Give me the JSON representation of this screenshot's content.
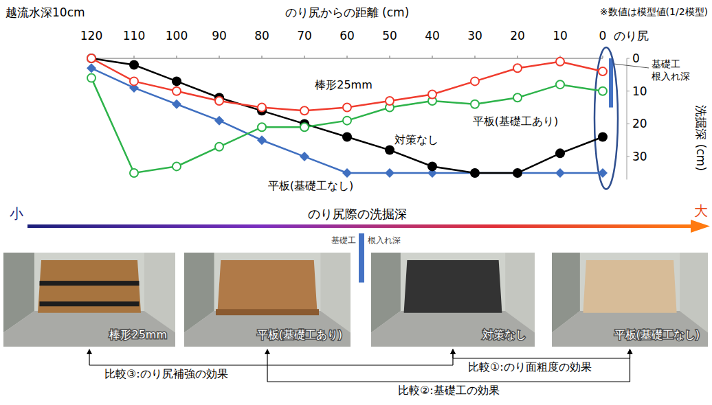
{
  "chart_data": {
    "type": "line",
    "title": "越流水深10cm",
    "note": "※数値は模型値(1/2模型)",
    "x_label": "のり尻からの距離 (cm)",
    "y_label": "洗掘深 (cm)",
    "x": [
      120,
      110,
      100,
      90,
      80,
      70,
      60,
      50,
      40,
      30,
      20,
      10,
      0
    ],
    "xlim": [
      120,
      0
    ],
    "xticks": [
      120,
      110,
      100,
      90,
      80,
      70,
      60,
      50,
      40,
      30,
      20,
      10,
      0
    ],
    "ylim": [
      0,
      37
    ],
    "yticks": [
      0,
      10,
      20,
      30
    ],
    "grid": false,
    "annotations": [
      {
        "text": "のり尻",
        "x": 0
      }
    ],
    "foundation": {
      "label": [
        "基礎工",
        "根入れ深"
      ],
      "x": 0,
      "depth": 15
    },
    "series": [
      {
        "name": "棒形25mm",
        "color": "#f03c2e",
        "marker": "circle-open",
        "values": [
          0,
          7,
          10,
          13,
          15,
          16,
          15,
          13,
          11,
          7,
          3,
          1,
          4
        ]
      },
      {
        "name": "平板(基礎工あり)",
        "color": "#2db34a",
        "marker": "circle-open",
        "values": [
          6,
          35,
          33,
          27,
          21,
          21,
          19,
          15,
          13,
          14,
          12,
          8,
          10
        ]
      },
      {
        "name": "対策なし",
        "color": "#000000",
        "marker": "circle",
        "values": [
          0,
          2,
          7,
          12,
          16,
          20,
          24,
          28,
          33,
          35,
          35,
          29,
          24
        ]
      },
      {
        "name": "平板(基礎工なし)",
        "color": "#3f6fc0",
        "marker": "diamond",
        "values": [
          3,
          9,
          14,
          19,
          25,
          30,
          35,
          35,
          35,
          35,
          35,
          35,
          35
        ]
      }
    ]
  },
  "scale_arrow": {
    "low": "小",
    "title": "のり尻際の洗掘深",
    "high": "大"
  },
  "photos": [
    {
      "label": "棒形25mm"
    },
    {
      "label": "平板(基礎工あり)"
    },
    {
      "label": "対策なし"
    },
    {
      "label": "平板(基礎工なし)"
    }
  ],
  "comparisons": [
    {
      "label": "比較①:のり面粗度の効果",
      "from": "対策なし",
      "to": "平板(基礎工なし)"
    },
    {
      "label": "比較②:基礎工の効果",
      "from": "平板(基礎工あり)",
      "to": "平板(基礎工なし)"
    },
    {
      "label": "比較③:のり尻補強の効果",
      "from": "棒形25mm",
      "to": "対策なし"
    }
  ]
}
